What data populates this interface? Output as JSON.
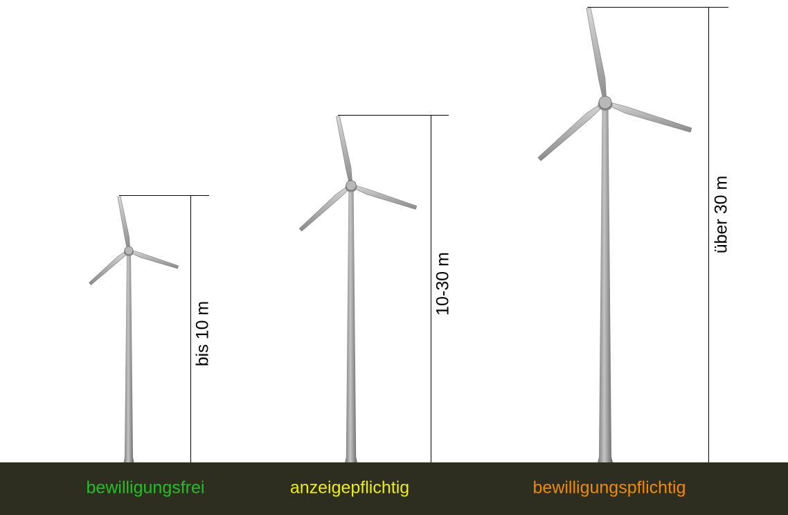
{
  "turbines": [
    {
      "height": "bis 10 m",
      "category": "bewilligungsfrei"
    },
    {
      "height": "10-30 m",
      "category": "anzeigepflichtig"
    },
    {
      "height": "über 30 m",
      "category": "bewilligungspflichtig"
    }
  ]
}
